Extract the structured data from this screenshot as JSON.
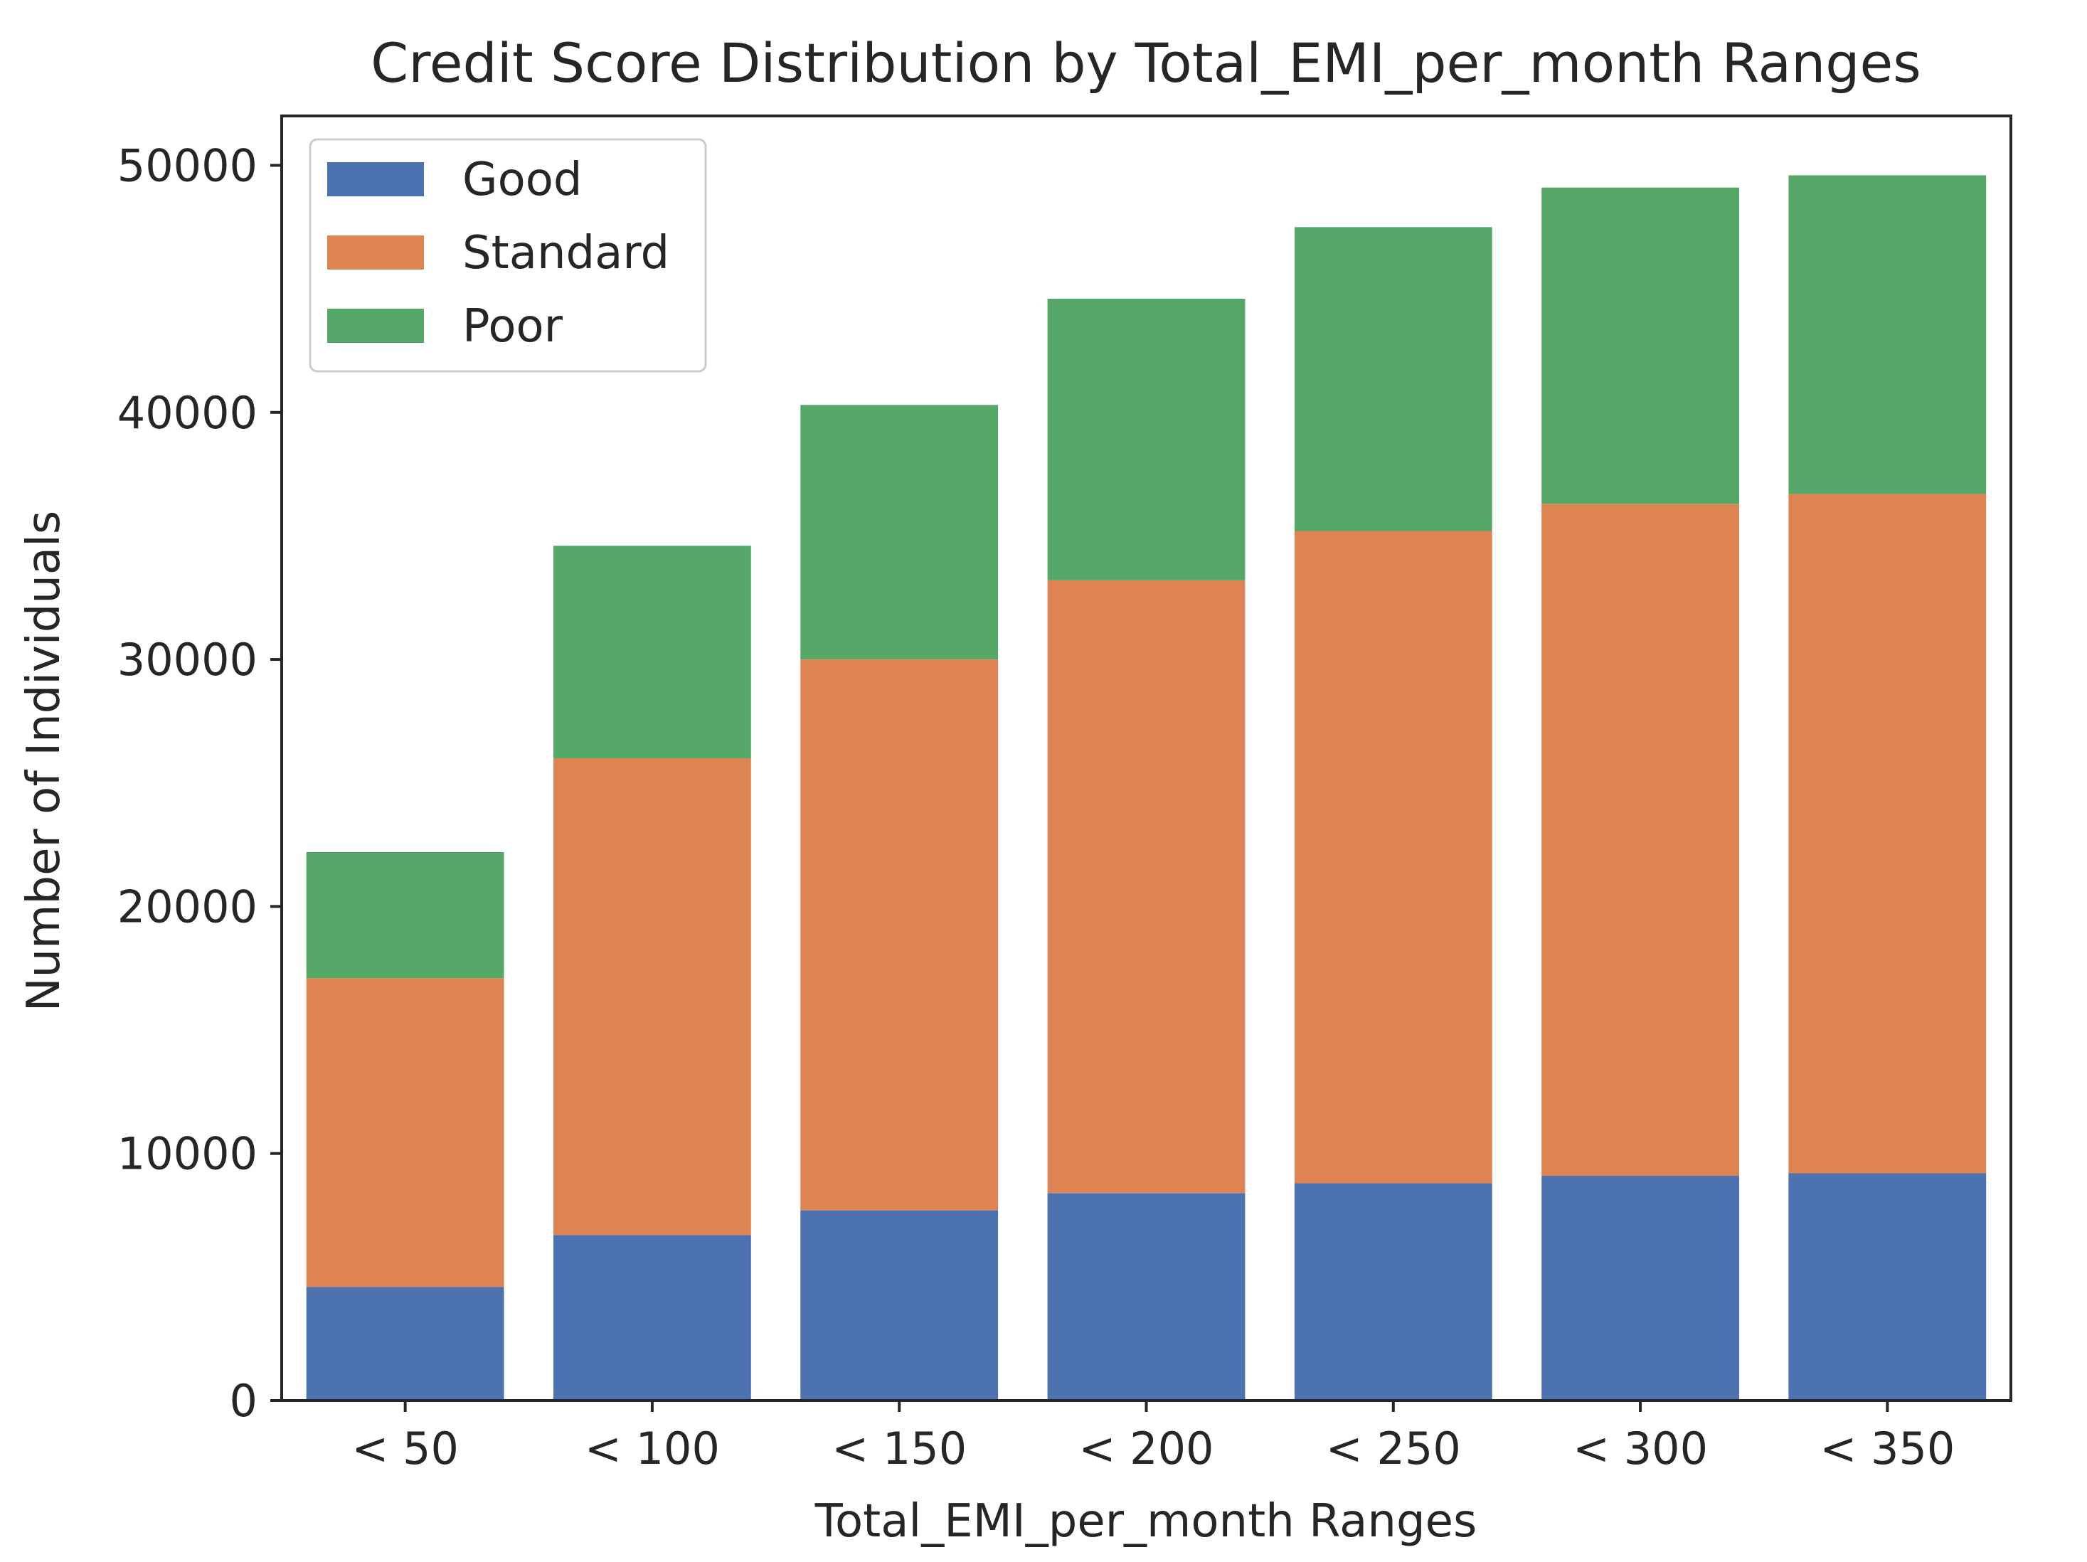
{
  "chart_data": {
    "type": "bar",
    "stacked": true,
    "title": "Credit Score Distribution by Total_EMI_per_month Ranges",
    "xlabel": "Total_EMI_per_month Ranges",
    "ylabel": "Number of Individuals",
    "categories": [
      "< 50",
      "< 100",
      "< 150",
      "< 200",
      "< 250",
      "< 300",
      "< 350"
    ],
    "series": [
      {
        "name": "Good",
        "color": "#4c72b0",
        "values": [
          4600,
          6700,
          7700,
          8400,
          8800,
          9100,
          9200
        ]
      },
      {
        "name": "Standard",
        "color": "#dd8452",
        "values": [
          12500,
          19300,
          22300,
          24800,
          26400,
          27200,
          27500
        ]
      },
      {
        "name": "Poor",
        "color": "#55a868",
        "values": [
          5100,
          8600,
          10300,
          11400,
          12300,
          12800,
          12900
        ]
      }
    ],
    "ylim": [
      0,
      52000
    ],
    "yticks": [
      0,
      10000,
      20000,
      30000,
      40000,
      50000
    ],
    "legend_position": "top-left",
    "grid": false
  }
}
